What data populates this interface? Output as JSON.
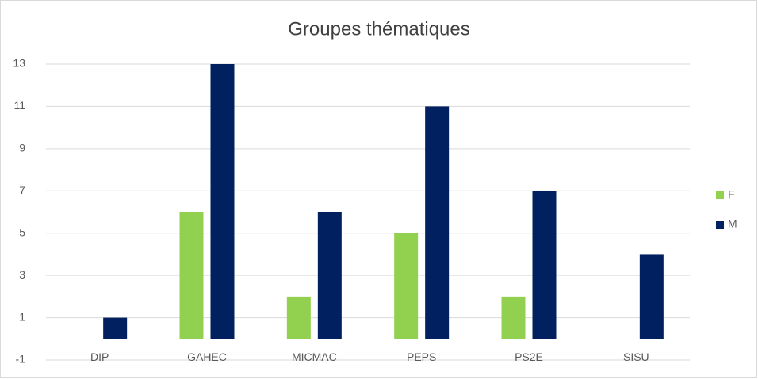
{
  "chart_data": {
    "type": "bar",
    "title": "Groupes thématiques",
    "categories": [
      "DIP",
      "GAHEC",
      "MICMAC",
      "PEPS",
      "PS2E",
      "SISU"
    ],
    "series": [
      {
        "name": "F",
        "color": "#92d050",
        "values": [
          0,
          6,
          2,
          5,
          2,
          0
        ]
      },
      {
        "name": "M",
        "color": "#002060",
        "values": [
          1,
          13,
          6,
          11,
          7,
          4
        ]
      }
    ],
    "ylim": [
      -1,
      13
    ],
    "yticks": [
      -1,
      1,
      3,
      5,
      7,
      9,
      11,
      13
    ],
    "grid": true,
    "legend": "right"
  }
}
